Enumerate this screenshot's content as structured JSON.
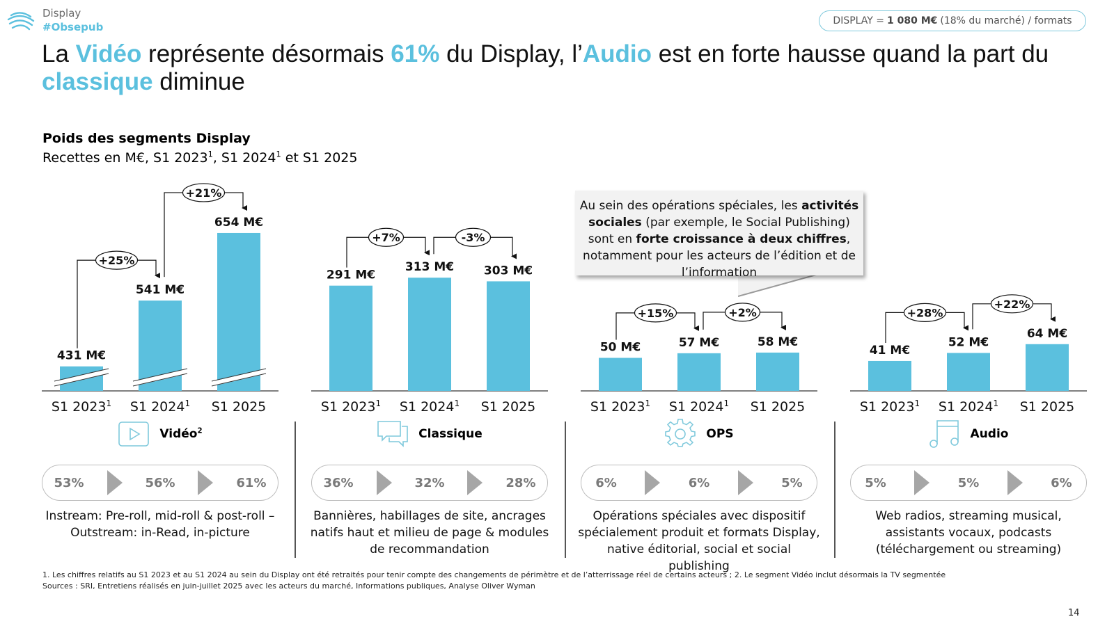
{
  "header": {
    "section": "Display",
    "hashtag": "#Obsepub",
    "summary_pill": {
      "prefix": "DISPLAY =",
      "value": "1 080 M€",
      "suffix": "(18% du marché) / formats"
    }
  },
  "title": {
    "parts": [
      {
        "text": "La ",
        "hl": false
      },
      {
        "text": "Vidéo",
        "hl": true
      },
      {
        "text": " représente désormais ",
        "hl": false
      },
      {
        "text": "61%",
        "hl": true
      },
      {
        "text": " du Display, l’",
        "hl": false
      },
      {
        "text": "Audio",
        "hl": true
      },
      {
        "text": " est en forte hausse quand la part du ",
        "hl": false
      },
      {
        "text": "classique",
        "hl": true
      },
      {
        "text": " diminue",
        "hl": false
      }
    ]
  },
  "subtitle": {
    "heading": "Poids des segments Display",
    "caption_a": "Recettes en M€, S1 2023",
    "caption_b": ", S1 2024",
    "caption_c": " et S1 2025",
    "sup": "1"
  },
  "callout": {
    "t1": "Au sein des opérations spéciales, les ",
    "b1": "activités sociales",
    "t2": " (par exemple, le Social Publishing) sont en ",
    "b2": "forte croissance à deux chiffres",
    "t3": ", notamment pour les acteurs de l’édition et de l’information"
  },
  "chart_data": [
    {
      "type": "bar",
      "title": "Vidéo",
      "title_sup": "2",
      "categories": [
        "S1 2023",
        "S1 2024",
        "S1 2025"
      ],
      "category_sups": [
        "1",
        "1",
        ""
      ],
      "values": [
        431,
        541,
        654
      ],
      "value_labels": [
        "431 M€",
        "541 M€",
        "654 M€"
      ],
      "growth_labels": [
        "+25%",
        "+21%"
      ],
      "axis_break": true,
      "unit": "M€",
      "shares": [
        "53%",
        "56%",
        "61%"
      ],
      "icon": "play-icon",
      "description": "Instream: Pre-roll, mid-roll & post-roll – Outstream: in-Read, in-picture"
    },
    {
      "type": "bar",
      "title": "Classique",
      "title_sup": "",
      "categories": [
        "S1 2023",
        "S1 2024",
        "S1 2025"
      ],
      "category_sups": [
        "1",
        "1",
        ""
      ],
      "values": [
        291,
        313,
        303
      ],
      "value_labels": [
        "291 M€",
        "313 M€",
        "303 M€"
      ],
      "growth_labels": [
        "+7%",
        "-3%"
      ],
      "axis_break": false,
      "unit": "M€",
      "shares": [
        "36%",
        "32%",
        "28%"
      ],
      "icon": "chat-bubbles-icon",
      "description": "Bannières, habillages de site, ancrages natifs haut et milieu de page & modules de recommandation"
    },
    {
      "type": "bar",
      "title": "OPS",
      "title_sup": "",
      "categories": [
        "S1 2023",
        "S1 2024",
        "S1 2025"
      ],
      "category_sups": [
        "1",
        "1",
        ""
      ],
      "values": [
        50,
        57,
        58
      ],
      "value_labels": [
        "50 M€",
        "57 M€",
        "58 M€"
      ],
      "growth_labels": [
        "+15%",
        "+2%"
      ],
      "axis_break": false,
      "unit": "M€",
      "shares": [
        "6%",
        "6%",
        "5%"
      ],
      "icon": "gear-icon",
      "description": "Opérations spéciales avec dispositif spécialement produit et formats Display, native éditorial, social et social publishing"
    },
    {
      "type": "bar",
      "title": "Audio",
      "title_sup": "",
      "categories": [
        "S1 2023",
        "S1 2024",
        "S1 2025"
      ],
      "category_sups": [
        "1",
        "1",
        ""
      ],
      "values": [
        41,
        52,
        64
      ],
      "value_labels": [
        "41 M€",
        "52 M€",
        "64 M€"
      ],
      "growth_labels": [
        "+28%",
        "+22%"
      ],
      "axis_break": false,
      "unit": "M€",
      "shares": [
        "5%",
        "5%",
        "6%"
      ],
      "icon": "music-note-icon",
      "description": "Web radios, streaming musical, assistants vocaux, podcasts (téléchargement ou streaming)"
    }
  ],
  "colors": {
    "bar": "#5bc0de",
    "accent": "#5bc0de",
    "share_arrow": "#a6a6a6"
  },
  "footnotes": {
    "note1": "1. Les chiffres relatifs au S1 2023 et au S1 2024 au sein du Display ont été retraités pour tenir compte des changements de périmètre et de l’atterrissage réel de certains acteurs ; 2. Le segment Vidéo inclut désormais la TV segmentée",
    "sources": "Sources : SRI, Entretiens réalisés en juin-juillet 2025 avec les acteurs du marché, Informations publiques, Analyse Oliver Wyman"
  },
  "page_number": "14"
}
